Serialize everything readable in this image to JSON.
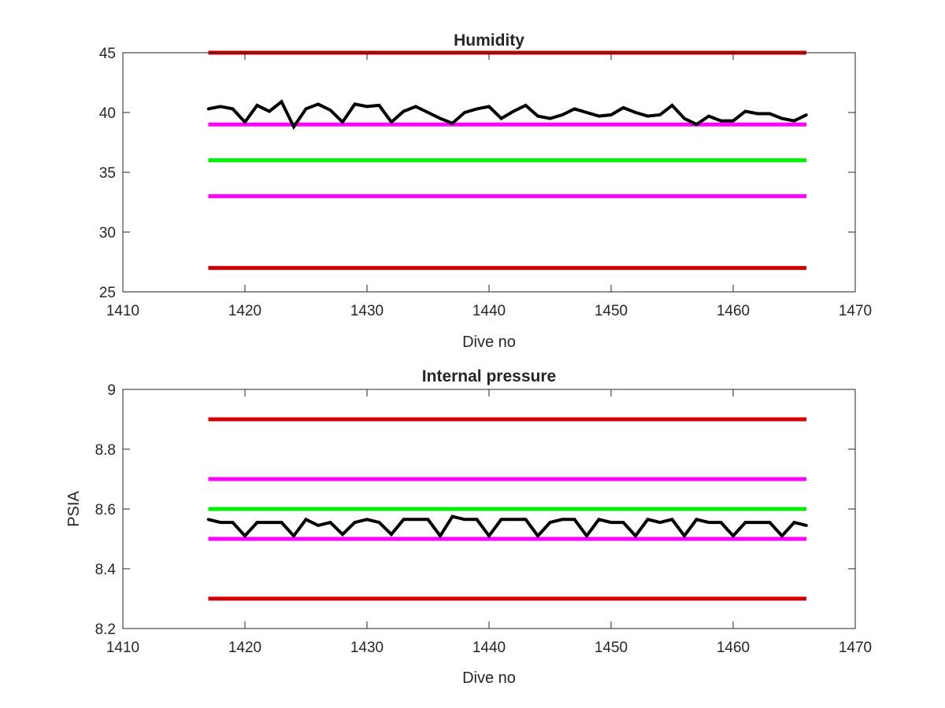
{
  "chart_data": [
    {
      "type": "line",
      "title": "Humidity",
      "xlabel": "Dive no",
      "ylabel": "",
      "xlim": [
        1410,
        1470
      ],
      "ylim": [
        25,
        45
      ],
      "xticks": [
        1410,
        1420,
        1430,
        1440,
        1450,
        1460,
        1470
      ],
      "yticks": [
        25,
        30,
        35,
        40,
        45
      ],
      "x_tick_labels": [
        "1410",
        "1420",
        "1430",
        "1440",
        "1450",
        "1460",
        "1470"
      ],
      "y_tick_labels": [
        "25",
        "30",
        "35",
        "40",
        "45"
      ],
      "grid": false,
      "series": [
        {
          "role": "limit-high",
          "color": "#d00000",
          "x": [
            1417,
            1466
          ],
          "y": [
            45,
            45
          ]
        },
        {
          "role": "warning-high",
          "color": "#ff00ff",
          "x": [
            1417,
            1466
          ],
          "y": [
            39,
            39
          ]
        },
        {
          "role": "target",
          "color": "#00ee00",
          "x": [
            1417,
            1466
          ],
          "y": [
            36,
            36
          ]
        },
        {
          "role": "warning-low",
          "color": "#ff00ff",
          "x": [
            1417,
            1466
          ],
          "y": [
            33,
            33
          ]
        },
        {
          "role": "limit-low",
          "color": "#d00000",
          "x": [
            1417,
            1466
          ],
          "y": [
            27,
            27
          ]
        },
        {
          "role": "measured",
          "color": "#000000",
          "x": [
            1417,
            1418,
            1419,
            1420,
            1421,
            1422,
            1423,
            1424,
            1425,
            1426,
            1427,
            1428,
            1429,
            1430,
            1431,
            1432,
            1433,
            1434,
            1435,
            1436,
            1437,
            1438,
            1439,
            1440,
            1441,
            1442,
            1443,
            1444,
            1445,
            1446,
            1447,
            1448,
            1449,
            1450,
            1451,
            1452,
            1453,
            1454,
            1455,
            1456,
            1457,
            1458,
            1459,
            1460,
            1461,
            1462,
            1463,
            1464,
            1465,
            1466
          ],
          "y": [
            40.3,
            40.5,
            40.3,
            39.2,
            40.6,
            40.1,
            40.9,
            38.8,
            40.3,
            40.7,
            40.2,
            39.2,
            40.7,
            40.5,
            40.6,
            39.2,
            40.1,
            40.5,
            40.0,
            39.5,
            39.1,
            40.0,
            40.3,
            40.5,
            39.5,
            40.1,
            40.6,
            39.7,
            39.5,
            39.8,
            40.3,
            40.0,
            39.7,
            39.8,
            40.4,
            40.0,
            39.7,
            39.8,
            40.6,
            39.5,
            39.0,
            39.7,
            39.3,
            39.3,
            40.1,
            39.9,
            39.9,
            39.5,
            39.3,
            39.8
          ]
        }
      ]
    },
    {
      "type": "line",
      "title": "Internal pressure",
      "xlabel": "Dive no",
      "ylabel": "PSIA",
      "xlim": [
        1410,
        1470
      ],
      "ylim": [
        8.2,
        9.0
      ],
      "xticks": [
        1410,
        1420,
        1430,
        1440,
        1450,
        1460,
        1470
      ],
      "yticks": [
        8.2,
        8.4,
        8.6,
        8.8,
        9.0
      ],
      "x_tick_labels": [
        "1410",
        "1420",
        "1430",
        "1440",
        "1450",
        "1460",
        "1470"
      ],
      "y_tick_labels": [
        "8.2",
        "8.4",
        "8.6",
        "8.8",
        "9"
      ],
      "grid": false,
      "series": [
        {
          "role": "limit-high",
          "color": "#d00000",
          "x": [
            1417,
            1466
          ],
          "y": [
            8.9,
            8.9
          ]
        },
        {
          "role": "warning-high",
          "color": "#ff00ff",
          "x": [
            1417,
            1466
          ],
          "y": [
            8.7,
            8.7
          ]
        },
        {
          "role": "target",
          "color": "#00ee00",
          "x": [
            1417,
            1466
          ],
          "y": [
            8.6,
            8.6
          ]
        },
        {
          "role": "warning-low",
          "color": "#ff00ff",
          "x": [
            1417,
            1466
          ],
          "y": [
            8.5,
            8.5
          ]
        },
        {
          "role": "limit-low",
          "color": "#d00000",
          "x": [
            1417,
            1466
          ],
          "y": [
            8.3,
            8.3
          ]
        },
        {
          "role": "measured",
          "color": "#000000",
          "x": [
            1417,
            1418,
            1419,
            1420,
            1421,
            1422,
            1423,
            1424,
            1425,
            1426,
            1427,
            1428,
            1429,
            1430,
            1431,
            1432,
            1433,
            1434,
            1435,
            1436,
            1437,
            1438,
            1439,
            1440,
            1441,
            1442,
            1443,
            1444,
            1445,
            1446,
            1447,
            1448,
            1449,
            1450,
            1451,
            1452,
            1453,
            1454,
            1455,
            1456,
            1457,
            1458,
            1459,
            1460,
            1461,
            1462,
            1463,
            1464,
            1465,
            1466
          ],
          "y": [
            8.565,
            8.555,
            8.555,
            8.51,
            8.555,
            8.555,
            8.555,
            8.51,
            8.565,
            8.545,
            8.555,
            8.515,
            8.555,
            8.565,
            8.555,
            8.515,
            8.565,
            8.565,
            8.565,
            8.51,
            8.575,
            8.565,
            8.565,
            8.51,
            8.565,
            8.565,
            8.565,
            8.51,
            8.555,
            8.565,
            8.565,
            8.51,
            8.565,
            8.555,
            8.555,
            8.51,
            8.565,
            8.555,
            8.565,
            8.51,
            8.565,
            8.555,
            8.555,
            8.51,
            8.555,
            8.555,
            8.555,
            8.51,
            8.555,
            8.545
          ]
        }
      ]
    }
  ]
}
